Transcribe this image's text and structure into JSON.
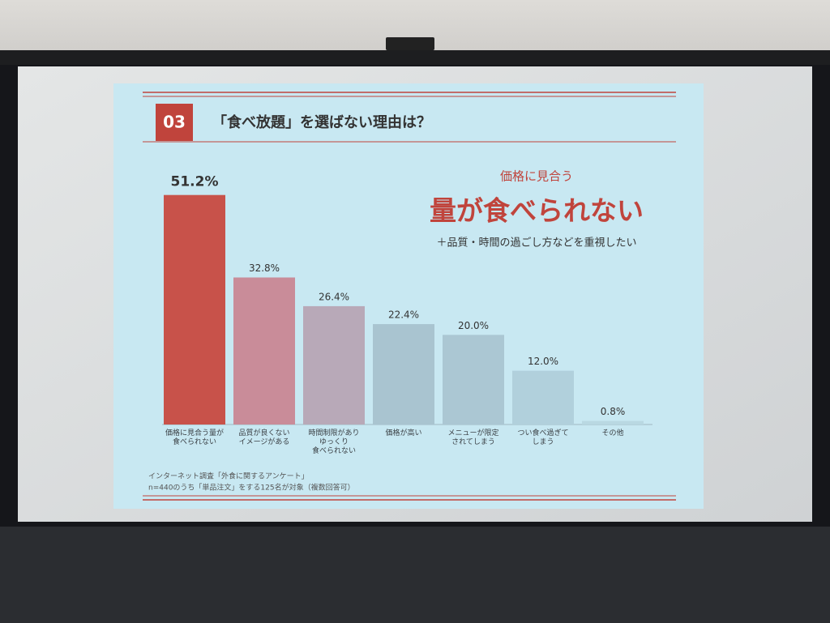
{
  "chart_data": {
    "type": "bar",
    "badge": "03",
    "title": "「食べ放題」を選ばない理由は？",
    "callout": [
      "価格に見合う",
      "量が食べられない",
      "＋品質・時間の過ごし方などを重視したい"
    ],
    "categories": [
      "価格に見合う量が\n食べられない",
      "品質が良くない\nイメージがある",
      "時間制限があり\nゆっくり\n食べられない",
      "価格が高い",
      "メニューが限定\nされてしまう",
      "つい食べ過ぎて\nしまう",
      "その他"
    ],
    "values": [
      51.2,
      32.8,
      26.4,
      22.4,
      20.0,
      12.0,
      0.8
    ],
    "value_labels": [
      "51.2%",
      "32.8%",
      "26.4%",
      "22.4%",
      "20.0%",
      "12.0%",
      "0.8%"
    ],
    "colors": [
      "#c8524a",
      "#c98c99",
      "#b8a9b8",
      "#a9c4d0",
      "#abc7d3",
      "#b1d0dc",
      "#b9d8e2"
    ],
    "ylim": [
      0,
      60
    ],
    "notes": [
      "インターネット調査「外食に関するアンケート」",
      "n=440のうち「単品注文」をする125名が対象（複数回答可）"
    ]
  }
}
